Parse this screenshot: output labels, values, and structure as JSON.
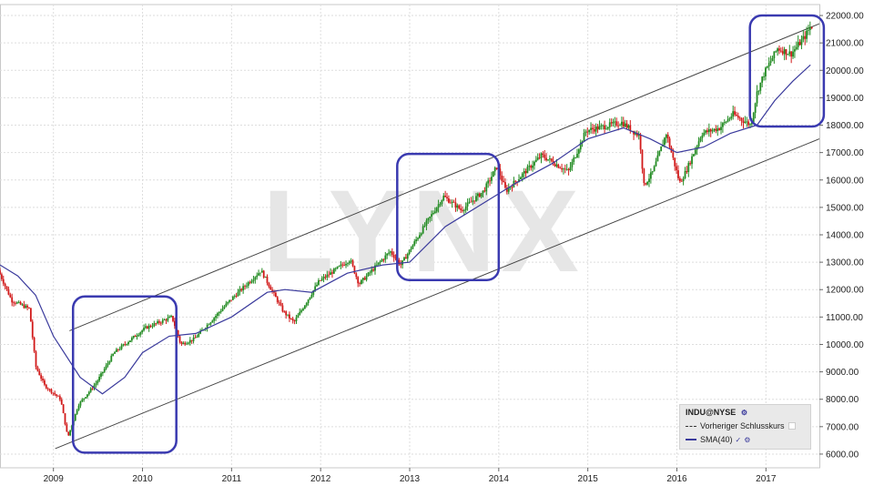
{
  "chart_data": {
    "type": "candlestick",
    "symbol": "INDU@NYSE",
    "x_ticks": [
      "2009",
      "2010",
      "2011",
      "2012",
      "2013",
      "2014",
      "2015",
      "2016",
      "2017"
    ],
    "y_ticks": [
      "6000.00",
      "7000.00",
      "8000.00",
      "9000.00",
      "10000.00",
      "11000.00",
      "12000.00",
      "13000.00",
      "14000.00",
      "15000.00",
      "16000.00",
      "17000.00",
      "18000.00",
      "19000.00",
      "20000.00",
      "21000.00",
      "22000.00"
    ],
    "ylim": [
      5500,
      22400
    ],
    "xlim": [
      2008.4,
      2017.6
    ],
    "grid": true,
    "watermark": "LYNX",
    "price_anchors": [
      {
        "x": 2008.4,
        "y": 12700
      },
      {
        "x": 2008.55,
        "y": 11600
      },
      {
        "x": 2008.75,
        "y": 11300
      },
      {
        "x": 2008.82,
        "y": 9200
      },
      {
        "x": 2008.92,
        "y": 8500
      },
      {
        "x": 2009.1,
        "y": 8000
      },
      {
        "x": 2009.18,
        "y": 6600
      },
      {
        "x": 2009.3,
        "y": 7800
      },
      {
        "x": 2009.5,
        "y": 8600
      },
      {
        "x": 2009.7,
        "y": 9700
      },
      {
        "x": 2010.05,
        "y": 10600
      },
      {
        "x": 2010.35,
        "y": 11000
      },
      {
        "x": 2010.45,
        "y": 10000
      },
      {
        "x": 2010.6,
        "y": 10200
      },
      {
        "x": 2011.0,
        "y": 11600
      },
      {
        "x": 2011.35,
        "y": 12700
      },
      {
        "x": 2011.6,
        "y": 11200
      },
      {
        "x": 2011.72,
        "y": 10800
      },
      {
        "x": 2012.0,
        "y": 12300
      },
      {
        "x": 2012.35,
        "y": 13100
      },
      {
        "x": 2012.45,
        "y": 12200
      },
      {
        "x": 2012.8,
        "y": 13400
      },
      {
        "x": 2012.92,
        "y": 12900
      },
      {
        "x": 2013.2,
        "y": 14400
      },
      {
        "x": 2013.4,
        "y": 15400
      },
      {
        "x": 2013.6,
        "y": 14900
      },
      {
        "x": 2013.85,
        "y": 15600
      },
      {
        "x": 2014.0,
        "y": 16500
      },
      {
        "x": 2014.1,
        "y": 15600
      },
      {
        "x": 2014.5,
        "y": 16900
      },
      {
        "x": 2014.8,
        "y": 16300
      },
      {
        "x": 2015.0,
        "y": 17800
      },
      {
        "x": 2015.4,
        "y": 18100
      },
      {
        "x": 2015.6,
        "y": 17600
      },
      {
        "x": 2015.65,
        "y": 15800
      },
      {
        "x": 2015.75,
        "y": 16300
      },
      {
        "x": 2015.9,
        "y": 17700
      },
      {
        "x": 2016.05,
        "y": 15900
      },
      {
        "x": 2016.12,
        "y": 16300
      },
      {
        "x": 2016.3,
        "y": 17700
      },
      {
        "x": 2016.5,
        "y": 17900
      },
      {
        "x": 2016.65,
        "y": 18400
      },
      {
        "x": 2016.85,
        "y": 18000
      },
      {
        "x": 2016.92,
        "y": 19200
      },
      {
        "x": 2017.0,
        "y": 19900
      },
      {
        "x": 2017.15,
        "y": 20800
      },
      {
        "x": 2017.3,
        "y": 20600
      },
      {
        "x": 2017.45,
        "y": 21200
      },
      {
        "x": 2017.52,
        "y": 21600
      }
    ],
    "series": [
      {
        "name": "SMA(40)",
        "color": "#3a3a9c",
        "points": [
          {
            "x": 2008.4,
            "y": 12900
          },
          {
            "x": 2008.6,
            "y": 12500
          },
          {
            "x": 2008.8,
            "y": 11800
          },
          {
            "x": 2009.0,
            "y": 10300
          },
          {
            "x": 2009.3,
            "y": 8800
          },
          {
            "x": 2009.55,
            "y": 8200
          },
          {
            "x": 2009.8,
            "y": 8800
          },
          {
            "x": 2010.0,
            "y": 9700
          },
          {
            "x": 2010.3,
            "y": 10300
          },
          {
            "x": 2010.6,
            "y": 10400
          },
          {
            "x": 2011.0,
            "y": 11000
          },
          {
            "x": 2011.4,
            "y": 11900
          },
          {
            "x": 2011.6,
            "y": 12000
          },
          {
            "x": 2011.9,
            "y": 11900
          },
          {
            "x": 2012.3,
            "y": 12600
          },
          {
            "x": 2012.7,
            "y": 12900
          },
          {
            "x": 2013.0,
            "y": 13000
          },
          {
            "x": 2013.4,
            "y": 14300
          },
          {
            "x": 2013.8,
            "y": 15100
          },
          {
            "x": 2014.2,
            "y": 15900
          },
          {
            "x": 2014.6,
            "y": 16600
          },
          {
            "x": 2015.0,
            "y": 17500
          },
          {
            "x": 2015.4,
            "y": 17900
          },
          {
            "x": 2015.7,
            "y": 17500
          },
          {
            "x": 2016.0,
            "y": 17000
          },
          {
            "x": 2016.3,
            "y": 17200
          },
          {
            "x": 2016.6,
            "y": 17700
          },
          {
            "x": 2016.9,
            "y": 18000
          },
          {
            "x": 2017.1,
            "y": 18900
          },
          {
            "x": 2017.3,
            "y": 19600
          },
          {
            "x": 2017.5,
            "y": 20200
          }
        ]
      }
    ],
    "trend_lines": [
      {
        "name": "channel-upper",
        "color": "#444444",
        "from": {
          "x": 2009.18,
          "y": 10500
        },
        "to": {
          "x": 2017.6,
          "y": 21700
        }
      },
      {
        "name": "channel-lower",
        "color": "#444444",
        "from": {
          "x": 2009.02,
          "y": 6200
        },
        "to": {
          "x": 2017.6,
          "y": 17500
        }
      }
    ],
    "highlight_boxes": [
      {
        "name": "box-2009-2010",
        "x0": 2009.22,
        "x1": 2010.38,
        "y0": 6050,
        "y1": 11750
      },
      {
        "name": "box-2013",
        "x0": 2012.86,
        "x1": 2014.0,
        "y0": 12350,
        "y1": 16950
      },
      {
        "name": "box-2017",
        "x0": 2016.82,
        "x1": 2017.65,
        "y0": 17950,
        "y1": 22000
      }
    ],
    "legend": {
      "title": "INDU@NYSE",
      "items": [
        {
          "label": "Vorheriger Schlusskurs",
          "style": "dashed"
        },
        {
          "label": "SMA(40)",
          "style": "solid"
        }
      ],
      "placement": "bottom-right"
    },
    "candle_colors": {
      "up": "#228b22",
      "down": "#d11a1a"
    }
  }
}
